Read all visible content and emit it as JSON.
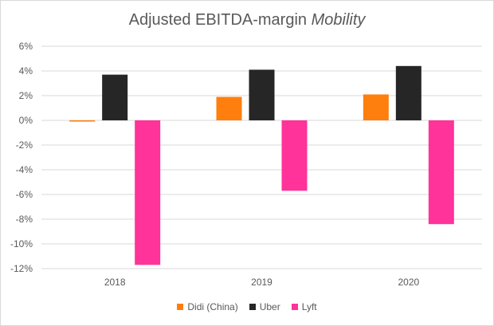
{
  "chart_data": {
    "type": "bar",
    "title_prefix": "Adjusted EBITDA-margin",
    "title_italic": "Mobility",
    "categories": [
      "2018",
      "2019",
      "2020"
    ],
    "series": [
      {
        "name": "Didi (China)",
        "color": "#ff7f0e",
        "values": [
          -0.1,
          1.9,
          2.1
        ]
      },
      {
        "name": "Uber",
        "color": "#262626",
        "values": [
          3.7,
          4.1,
          4.4
        ]
      },
      {
        "name": "Lyft",
        "color": "#ff3399",
        "values": [
          -11.7,
          -5.7,
          -8.4
        ]
      }
    ],
    "ylim": [
      -12,
      6
    ],
    "yticks": [
      "6%",
      "4%",
      "2%",
      "0%",
      "-2%",
      "-4%",
      "-6%",
      "-8%",
      "-10%",
      "-12%"
    ],
    "ytick_values": [
      6,
      4,
      2,
      0,
      -2,
      -4,
      -6,
      -8,
      -10,
      -12
    ],
    "grid": true,
    "legend_position": "bottom"
  }
}
